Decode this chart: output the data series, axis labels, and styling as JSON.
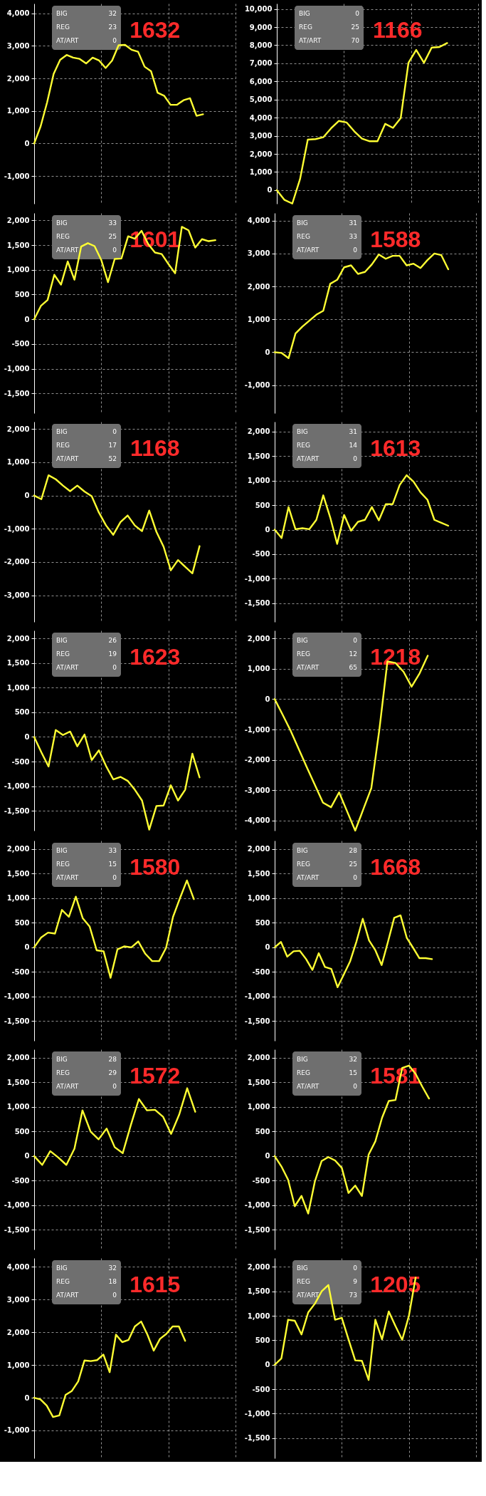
{
  "chart_data": [
    {
      "type": "line",
      "title": "1632",
      "annotations": [
        "BIG",
        "32",
        "REG",
        "23",
        "AT/ART",
        "0"
      ],
      "color": "#ffff33",
      "grid": true,
      "tick_labels": "y",
      "ylim": [
        -1850,
        4300
      ],
      "yticks": [
        {
          "value": -1000,
          "label": "-1,000"
        },
        0,
        {
          "value": 1000,
          "label": "1,000"
        },
        {
          "value": 2000,
          "label": "2,000"
        },
        {
          "value": 3000,
          "label": "3,000"
        },
        {
          "value": 4000,
          "label": "4,000"
        }
      ],
      "categories": [
        null,
        null,
        null,
        null,
        null,
        null,
        null,
        null,
        null,
        null,
        null,
        null,
        null,
        null,
        null,
        null,
        null,
        null,
        null,
        null,
        null,
        null,
        null,
        null,
        null,
        null,
        null,
        null,
        null,
        null,
        null,
        null
      ],
      "values": [
        0,
        530,
        1270,
        2140,
        2570,
        2720,
        2640,
        2600,
        2460,
        2640,
        2550,
        2320,
        2550,
        3020,
        3030,
        2880,
        2820,
        2360,
        2220,
        1560,
        1470,
        1190,
        1190,
        1330,
        1390,
        850,
        900,
        null,
        null,
        null,
        null,
        null
      ]
    },
    {
      "type": "line",
      "title": "1166",
      "annotations": [
        "BIG",
        "0",
        "REG",
        "25",
        "AT/ART",
        "70"
      ],
      "color": "#ffff33",
      "grid": true,
      "tick_labels": "y",
      "ylim": [
        -750,
        10300
      ],
      "yticks": [
        0,
        {
          "value": 1000,
          "label": "1,000"
        },
        {
          "value": 2000,
          "label": "2,000"
        },
        {
          "value": 3000,
          "label": "3,000"
        },
        {
          "value": 4000,
          "label": "4,000"
        },
        {
          "value": 5000,
          "label": "5,000"
        },
        {
          "value": 6000,
          "label": "6,000"
        },
        {
          "value": 7000,
          "label": "7,000"
        },
        {
          "value": 8000,
          "label": "8,000"
        },
        {
          "value": 9000,
          "label": "9,000"
        },
        {
          "value": 10000,
          "label": "10,000"
        }
      ],
      "categories": [
        null,
        null,
        null,
        null,
        null,
        null,
        null,
        null,
        null,
        null,
        null,
        null,
        null,
        null,
        null,
        null,
        null,
        null,
        null,
        null,
        null,
        null,
        null,
        null,
        null,
        null,
        null
      ],
      "values": [
        0,
        -540,
        -740,
        610,
        2790,
        2820,
        2920,
        3410,
        3820,
        3740,
        3250,
        2840,
        2700,
        2700,
        3660,
        3440,
        3980,
        7030,
        7740,
        7030,
        7870,
        7900,
        8120,
        null,
        null,
        null,
        null
      ]
    },
    {
      "type": "line",
      "title": "1601",
      "annotations": [
        "BIG",
        "33",
        "REG",
        "25",
        "AT/ART",
        "0"
      ],
      "color": "#ffff33",
      "grid": true,
      "tick_labels": "y",
      "ylim": [
        -1900,
        2150
      ],
      "yticks": [
        {
          "value": -1500,
          "label": "-1,500"
        },
        {
          "value": -1000,
          "label": "-1,000"
        },
        -500,
        0,
        500,
        {
          "value": 1000,
          "label": "1,000"
        },
        {
          "value": 1500,
          "label": "1,500"
        },
        {
          "value": 2000,
          "label": "2,000"
        }
      ],
      "categories": [
        null,
        null,
        null,
        null,
        null,
        null,
        null,
        null,
        null,
        null,
        null,
        null,
        null,
        null,
        null,
        null,
        null,
        null,
        null,
        null,
        null,
        null,
        null,
        null,
        null,
        null,
        null,
        null,
        null,
        null,
        null
      ],
      "values": [
        0,
        270,
        390,
        900,
        700,
        1170,
        800,
        1470,
        1540,
        1480,
        1200,
        750,
        1220,
        1230,
        1680,
        1630,
        1790,
        1520,
        1350,
        1320,
        1120,
        930,
        1870,
        1800,
        1450,
        1620,
        1580,
        1600,
        null,
        null,
        null
      ]
    },
    {
      "type": "line",
      "title": "1588",
      "annotations": [
        "BIG",
        "31",
        "REG",
        "33",
        "AT/ART",
        "0"
      ],
      "color": "#ffff33",
      "grid": true,
      "tick_labels": "y",
      "ylim": [
        -1850,
        4230
      ],
      "yticks": [
        {
          "value": -1000,
          "label": "-1,000"
        },
        0,
        {
          "value": 1000,
          "label": "1,000"
        },
        {
          "value": 2000,
          "label": "2,000"
        },
        {
          "value": 3000,
          "label": "3,000"
        },
        {
          "value": 4000,
          "label": "4,000"
        }
      ],
      "categories": [
        null,
        null,
        null,
        null,
        null,
        null,
        null,
        null,
        null,
        null,
        null,
        null,
        null,
        null,
        null,
        null,
        null,
        null,
        null,
        null,
        null,
        null,
        null,
        null,
        null,
        null,
        null,
        null,
        null,
        null
      ],
      "values": [
        0,
        -20,
        -180,
        570,
        780,
        960,
        1140,
        1260,
        2080,
        2200,
        2580,
        2640,
        2380,
        2440,
        2670,
        2970,
        2840,
        2930,
        2930,
        2640,
        2690,
        2560,
        2800,
        3000,
        2950,
        2520,
        null,
        null,
        null,
        null
      ]
    },
    {
      "type": "line",
      "title": "1168",
      "annotations": [
        "BIG",
        "0",
        "REG",
        "17",
        "AT/ART",
        "52"
      ],
      "color": "#ffff33",
      "grid": true,
      "tick_labels": "y",
      "ylim": [
        -3800,
        2220
      ],
      "yticks": [
        {
          "value": -3000,
          "label": "-3,000"
        },
        {
          "value": -2000,
          "label": "-2,000"
        },
        {
          "value": -1000,
          "label": "-1,000"
        },
        0,
        {
          "value": 1000,
          "label": "1,000"
        },
        {
          "value": 2000,
          "label": "2,000"
        }
      ],
      "categories": [
        null,
        null,
        null,
        null,
        null,
        null,
        null,
        null,
        null,
        null,
        null,
        null,
        null,
        null,
        null,
        null,
        null,
        null,
        null,
        null,
        null,
        null,
        null,
        null,
        null,
        null,
        null,
        null,
        null
      ],
      "values": [
        0,
        -110,
        610,
        490,
        300,
        130,
        300,
        120,
        -20,
        -510,
        -900,
        -1180,
        -800,
        -600,
        -900,
        -1070,
        -450,
        -1090,
        -1540,
        -2250,
        -1940,
        -2140,
        -2340,
        -1520,
        null,
        null,
        null,
        null,
        null
      ]
    },
    {
      "type": "line",
      "title": "1613",
      "annotations": [
        "BIG",
        "31",
        "REG",
        "14",
        "AT/ART",
        "0"
      ],
      "color": "#ffff33",
      "grid": true,
      "tick_labels": "y",
      "ylim": [
        -1880,
        2200
      ],
      "yticks": [
        {
          "value": -1500,
          "label": "-1,500"
        },
        {
          "value": -1000,
          "label": "-1,000"
        },
        -500,
        0,
        500,
        {
          "value": 1000,
          "label": "1,000"
        },
        {
          "value": 1500,
          "label": "1,500"
        },
        {
          "value": 2000,
          "label": "2,000"
        }
      ],
      "categories": [
        null,
        null,
        null,
        null,
        null,
        null,
        null,
        null,
        null,
        null,
        null,
        null,
        null,
        null,
        null,
        null,
        null,
        null,
        null,
        null,
        null,
        null,
        null,
        null,
        null,
        null,
        null,
        null,
        null,
        null
      ],
      "values": [
        0,
        -170,
        460,
        10,
        30,
        10,
        200,
        700,
        250,
        -290,
        300,
        -20,
        160,
        200,
        460,
        190,
        520,
        520,
        910,
        1110,
        980,
        760,
        610,
        200,
        140,
        80,
        null,
        null,
        null,
        null
      ]
    },
    {
      "type": "line",
      "title": "1623",
      "annotations": [
        "BIG",
        "26",
        "REG",
        "19",
        "AT/ART",
        "0"
      ],
      "color": "#ffff33",
      "grid": true,
      "tick_labels": "y",
      "ylim": [
        -1900,
        2160
      ],
      "yticks": [
        {
          "value": -1500,
          "label": "-1,500"
        },
        {
          "value": -1000,
          "label": "-1,000"
        },
        -500,
        0,
        500,
        {
          "value": 1000,
          "label": "1,000"
        },
        {
          "value": 1500,
          "label": "1,500"
        },
        {
          "value": 2000,
          "label": "2,000"
        }
      ],
      "categories": [
        null,
        null,
        null,
        null,
        null,
        null,
        null,
        null,
        null,
        null,
        null,
        null,
        null,
        null,
        null,
        null,
        null,
        null,
        null,
        null,
        null,
        null,
        null,
        null,
        null,
        null,
        null,
        null,
        null
      ],
      "values": [
        0,
        -310,
        -600,
        140,
        40,
        110,
        -190,
        50,
        -470,
        -270,
        -590,
        -860,
        -810,
        -890,
        -1070,
        -1290,
        -1880,
        -1400,
        -1390,
        -980,
        -1290,
        -1070,
        -340,
        -820,
        null,
        null,
        null,
        null,
        null
      ]
    },
    {
      "type": "line",
      "title": "1218",
      "annotations": [
        "BIG",
        "0",
        "REG",
        "12",
        "AT/ART",
        "65"
      ],
      "color": "#ffff33",
      "grid": true,
      "tick_labels": "y",
      "ylim": [
        -4330,
        2260
      ],
      "yticks": [
        {
          "value": -4000,
          "label": "-4,000"
        },
        {
          "value": -3000,
          "label": "-3,000"
        },
        {
          "value": -2000,
          "label": "-2,000"
        },
        {
          "value": -1000,
          "label": "-1,000"
        },
        0,
        {
          "value": 1000,
          "label": "1,000"
        },
        {
          "value": 2000,
          "label": "2,000"
        }
      ],
      "categories": [
        null,
        null,
        null,
        null,
        null,
        null,
        null,
        null,
        null,
        null,
        null,
        null,
        null,
        null,
        null,
        null,
        null,
        null,
        null,
        null,
        null,
        null,
        null,
        null,
        null,
        null
      ],
      "values": [
        0,
        -520,
        -1050,
        -1650,
        -2250,
        -2830,
        -3410,
        -3560,
        -3070,
        -3700,
        -4330,
        -3630,
        -2930,
        -1000,
        1240,
        1190,
        900,
        410,
        850,
        1430,
        null,
        null,
        null,
        null,
        null,
        null
      ]
    },
    {
      "type": "line",
      "title": "1580",
      "annotations": [
        "BIG",
        "33",
        "REG",
        "15",
        "AT/ART",
        "0"
      ],
      "color": "#ffff33",
      "grid": true,
      "tick_labels": "y",
      "ylim": [
        -1900,
        2170
      ],
      "yticks": [
        {
          "value": -1500,
          "label": "-1,500"
        },
        {
          "value": -1000,
          "label": "-1,000"
        },
        -500,
        0,
        500,
        {
          "value": 1000,
          "label": "1,000"
        },
        {
          "value": 1500,
          "label": "1,500"
        },
        {
          "value": 2000,
          "label": "2,000"
        }
      ],
      "categories": [
        null,
        null,
        null,
        null,
        null,
        null,
        null,
        null,
        null,
        null,
        null,
        null,
        null,
        null,
        null,
        null,
        null,
        null,
        null,
        null,
        null,
        null,
        null,
        null,
        null,
        null,
        null,
        null,
        null,
        null
      ],
      "values": [
        0,
        200,
        300,
        280,
        760,
        620,
        1030,
        590,
        420,
        -60,
        -80,
        -620,
        -40,
        20,
        0,
        120,
        -130,
        -280,
        -280,
        -10,
        620,
        1000,
        1360,
        980,
        null,
        null,
        null,
        null,
        null,
        null
      ]
    },
    {
      "type": "line",
      "title": "1668",
      "annotations": [
        "BIG",
        "28",
        "REG",
        "25",
        "AT/ART",
        "0"
      ],
      "color": "#ffff33",
      "grid": true,
      "tick_labels": "y",
      "ylim": [
        -1900,
        2170
      ],
      "yticks": [
        {
          "value": -1500,
          "label": "-1,500"
        },
        {
          "value": -1000,
          "label": "-1,000"
        },
        -500,
        0,
        500,
        {
          "value": 1000,
          "label": "1,000"
        },
        {
          "value": 1500,
          "label": "1,500"
        },
        {
          "value": 2000,
          "label": "2,000"
        }
      ],
      "categories": [
        null,
        null,
        null,
        null,
        null,
        null,
        null,
        null,
        null,
        null,
        null,
        null,
        null,
        null,
        null,
        null,
        null,
        null,
        null,
        null,
        null,
        null,
        null,
        null,
        null,
        null,
        null,
        null,
        null,
        null,
        null,
        null,
        null
      ],
      "values": [
        0,
        110,
        -190,
        -80,
        -70,
        -240,
        -460,
        -120,
        -400,
        -440,
        -810,
        -550,
        -280,
        120,
        580,
        140,
        -60,
        -360,
        110,
        600,
        650,
        190,
        -10,
        -220,
        -220,
        -240,
        null,
        null,
        null,
        null,
        null,
        null,
        null
      ]
    },
    {
      "type": "line",
      "title": "1572",
      "annotations": [
        "BIG",
        "28",
        "REG",
        "29",
        "AT/ART",
        "0"
      ],
      "color": "#ffff33",
      "grid": true,
      "tick_labels": "y",
      "ylim": [
        -1900,
        2170
      ],
      "yticks": [
        {
          "value": -1500,
          "label": "-1,500"
        },
        {
          "value": -1000,
          "label": "-1,000"
        },
        -500,
        0,
        500,
        {
          "value": 1000,
          "label": "1,000"
        },
        {
          "value": 1500,
          "label": "1,500"
        },
        {
          "value": 2000,
          "label": "2,000"
        }
      ],
      "categories": [
        null,
        null,
        null,
        null,
        null,
        null,
        null,
        null,
        null,
        null,
        null,
        null,
        null,
        null,
        null,
        null,
        null,
        null,
        null,
        null,
        null,
        null,
        null,
        null,
        null,
        null
      ],
      "values": [
        0,
        -180,
        100,
        -30,
        -180,
        150,
        930,
        500,
        340,
        560,
        180,
        60,
        630,
        1160,
        930,
        940,
        800,
        450,
        840,
        1380,
        900,
        null,
        null,
        null,
        null,
        null
      ]
    },
    {
      "type": "line",
      "title": "1581",
      "annotations": [
        "BIG",
        "32",
        "REG",
        "15",
        "AT/ART",
        "0"
      ],
      "color": "#ffff33",
      "grid": true,
      "tick_labels": "y",
      "ylim": [
        -1900,
        2170
      ],
      "yticks": [
        {
          "value": -1500,
          "label": "-1,500"
        },
        {
          "value": -1000,
          "label": "-1,000"
        },
        -500,
        0,
        500,
        {
          "value": 1000,
          "label": "1,000"
        },
        {
          "value": 1500,
          "label": "1,500"
        },
        {
          "value": 2000,
          "label": "2,000"
        }
      ],
      "categories": [
        null,
        null,
        null,
        null,
        null,
        null,
        null,
        null,
        null,
        null,
        null,
        null,
        null,
        null,
        null,
        null,
        null,
        null,
        null,
        null,
        null,
        null,
        null,
        null,
        null,
        null,
        null,
        null,
        null,
        null,
        null
      ],
      "values": [
        0,
        -210,
        -480,
        -1020,
        -810,
        -1170,
        -510,
        -100,
        -20,
        -90,
        -240,
        -750,
        -600,
        -810,
        30,
        300,
        780,
        1120,
        1140,
        1790,
        1840,
        1670,
        1410,
        1170,
        null,
        null,
        null,
        null,
        null,
        null,
        null
      ]
    },
    {
      "type": "line",
      "title": "1615",
      "annotations": [
        "BIG",
        "32",
        "REG",
        "18",
        "AT/ART",
        "0"
      ],
      "color": "#ffff33",
      "grid": true,
      "tick_labels": "y",
      "ylim": [
        -1850,
        4270
      ],
      "yticks": [
        {
          "value": -1000,
          "label": "-1,000"
        },
        0,
        {
          "value": 1000,
          "label": "1,000"
        },
        {
          "value": 2000,
          "label": "2,000"
        },
        {
          "value": 3000,
          "label": "3,000"
        },
        {
          "value": 4000,
          "label": "4,000"
        }
      ],
      "categories": [
        null,
        null,
        null,
        null,
        null,
        null,
        null,
        null,
        null,
        null,
        null,
        null,
        null,
        null,
        null,
        null,
        null,
        null,
        null,
        null,
        null,
        null,
        null,
        null,
        null,
        null,
        null,
        null,
        null,
        null,
        null,
        null,
        null
      ],
      "values": [
        0,
        -50,
        -240,
        -590,
        -540,
        90,
        210,
        500,
        1140,
        1120,
        1150,
        1320,
        780,
        1930,
        1700,
        1770,
        2180,
        2330,
        1930,
        1440,
        1800,
        1950,
        2180,
        2180,
        1740,
        null,
        null,
        null,
        null,
        null,
        null,
        null,
        null
      ]
    },
    {
      "type": "line",
      "title": "1205",
      "annotations": [
        "BIG",
        "0",
        "REG",
        "9",
        "AT/ART",
        "73"
      ],
      "color": "#ffff33",
      "grid": true,
      "tick_labels": "y",
      "ylim": [
        -1910,
        2180
      ],
      "yticks": [
        {
          "value": -1500,
          "label": "-1,500"
        },
        {
          "value": -1000,
          "label": "-1,000"
        },
        -500,
        0,
        500,
        {
          "value": 1000,
          "label": "1,000"
        },
        {
          "value": 1500,
          "label": "1,500"
        },
        {
          "value": 2000,
          "label": "2,000"
        }
      ],
      "categories": [
        null,
        null,
        null,
        null,
        null,
        null,
        null,
        null,
        null,
        null,
        null,
        null,
        null,
        null,
        null,
        null,
        null,
        null,
        null,
        null,
        null,
        null,
        null,
        null,
        null,
        null,
        null,
        null,
        null,
        null,
        null
      ],
      "values": [
        0,
        130,
        920,
        900,
        620,
        1070,
        1250,
        1500,
        1630,
        920,
        960,
        520,
        90,
        80,
        -310,
        920,
        520,
        1090,
        790,
        510,
        1000,
        1780,
        null,
        null,
        null,
        null,
        null,
        null,
        null,
        null,
        null
      ]
    }
  ]
}
